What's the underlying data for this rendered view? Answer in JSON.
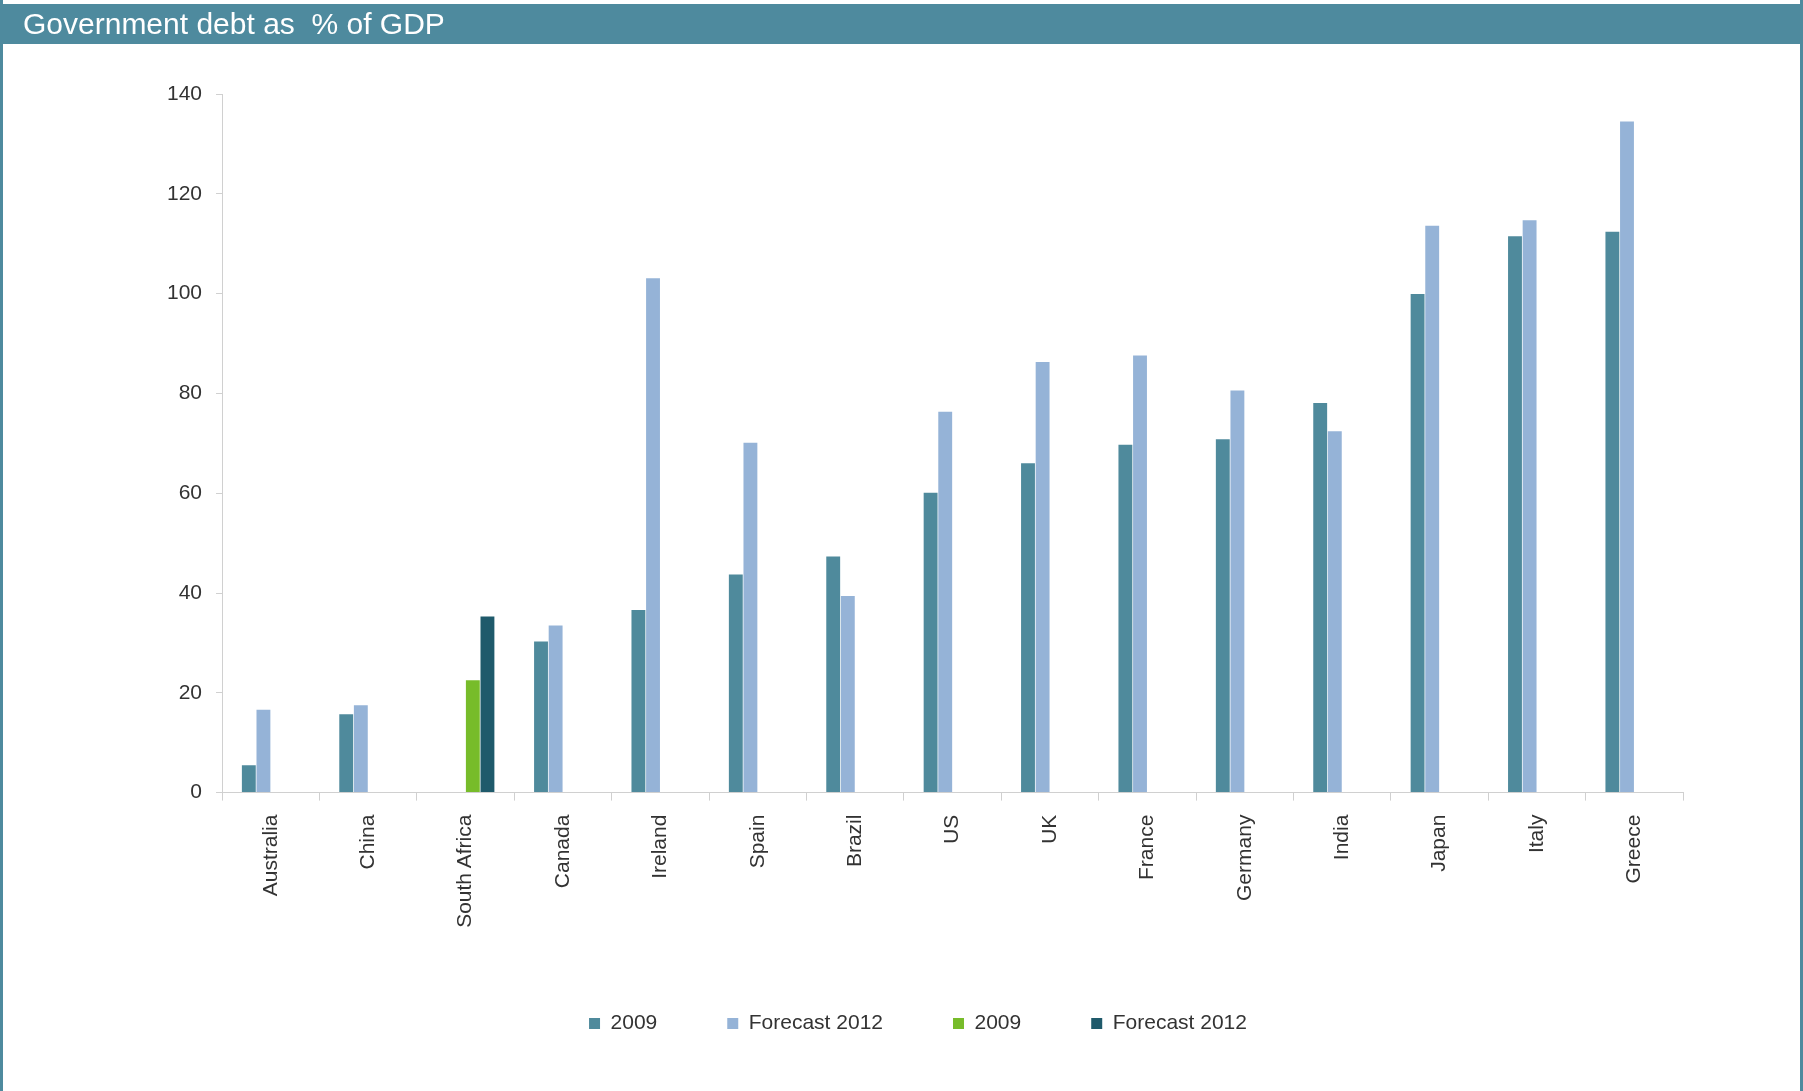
{
  "chart_data": {
    "type": "bar",
    "title": "Government debt as  % of GDP",
    "categories": [
      "Australia",
      "China",
      "South Africa",
      "Canada",
      "Ireland",
      "Spain",
      "Brazil",
      "US",
      "UK",
      "France",
      "Germany",
      "India",
      "Japan",
      "Italy",
      "Greece"
    ],
    "series": [
      {
        "name": "2009",
        "color": "#4f8a9c",
        "values": [
          5.5,
          15.7,
          null,
          30.3,
          36.6,
          43.7,
          47.3,
          60.1,
          66,
          69.7,
          70.8,
          78.1,
          99.9,
          111.5,
          112.4
        ]
      },
      {
        "name": "Forecast 2012",
        "color": "#95b3d7",
        "values": [
          16.6,
          17.5,
          null,
          33.5,
          103.1,
          70.1,
          39.4,
          76.3,
          86.3,
          87.6,
          80.6,
          72.4,
          113.6,
          114.7,
          134.5
        ]
      },
      {
        "name": "2009",
        "color": "#77bc2a",
        "values": [
          null,
          null,
          22.5,
          null,
          null,
          null,
          null,
          null,
          null,
          null,
          null,
          null,
          null,
          null,
          null
        ]
      },
      {
        "name": "Forecast 2012",
        "color": "#1f5a6b",
        "values": [
          null,
          null,
          35.3,
          null,
          null,
          null,
          null,
          null,
          null,
          null,
          null,
          null,
          null,
          null,
          null
        ]
      }
    ],
    "ylim": [
      0,
      140
    ],
    "yticks": [
      0,
      20,
      40,
      60,
      80,
      100,
      120,
      140
    ],
    "grid": false,
    "legend": "bottom"
  }
}
